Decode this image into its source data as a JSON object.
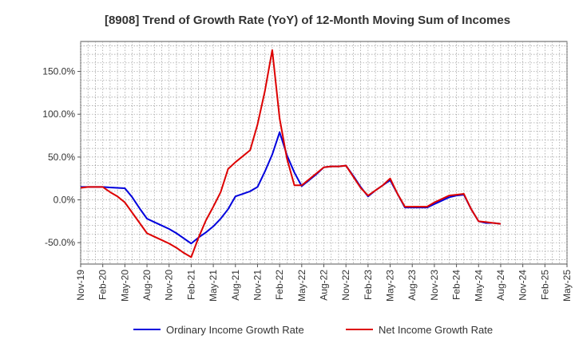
{
  "chart_data": {
    "type": "line",
    "title": "[8908]  Trend of Growth Rate (YoY) of 12-Month Moving Sum of Incomes",
    "xlabel": "",
    "ylabel": "",
    "ylim": [
      -75,
      185
    ],
    "grid": true,
    "legend_position": "bottom",
    "y_ticks": [
      150,
      100,
      50,
      0,
      -50
    ],
    "y_tick_labels": [
      "150.0%",
      "100.0%",
      "50.0%",
      "0.0%",
      "-50.0%"
    ],
    "x_tick_labels": [
      "Nov-19",
      "Feb-20",
      "May-20",
      "Aug-20",
      "Nov-20",
      "Feb-21",
      "May-21",
      "Aug-21",
      "Nov-21",
      "Feb-22",
      "May-22",
      "Aug-22",
      "Nov-22",
      "Feb-23",
      "May-23",
      "Aug-23",
      "Nov-23",
      "Feb-24",
      "May-24",
      "Aug-24",
      "Nov-24",
      "Feb-25",
      "May-25"
    ],
    "x": [
      "Nov-19",
      "Dec-19",
      "Jan-20",
      "Feb-20",
      "Mar-20",
      "Apr-20",
      "May-20",
      "Jun-20",
      "Jul-20",
      "Aug-20",
      "Sep-20",
      "Oct-20",
      "Nov-20",
      "Dec-20",
      "Jan-21",
      "Feb-21",
      "Mar-21",
      "Apr-21",
      "May-21",
      "Jun-21",
      "Jul-21",
      "Aug-21",
      "Sep-21",
      "Oct-21",
      "Nov-21",
      "Dec-21",
      "Jan-22",
      "Feb-22",
      "Mar-22",
      "Apr-22",
      "May-22",
      "Jun-22",
      "Jul-22",
      "Aug-22",
      "Sep-22",
      "Oct-22",
      "Nov-22",
      "Dec-22",
      "Jan-23",
      "Feb-23",
      "Mar-23",
      "Apr-23",
      "May-23",
      "Jun-23",
      "Jul-23",
      "Aug-23",
      "Sep-23",
      "Oct-23",
      "Nov-23",
      "Dec-23",
      "Jan-24",
      "Feb-24",
      "Mar-24",
      "Apr-24",
      "May-24",
      "Jun-24",
      "Jul-24",
      "Aug-24",
      "Sep-24",
      "Oct-24",
      "Nov-24"
    ],
    "series": [
      {
        "name": "Ordinary Income Growth Rate",
        "color": "#0000dd",
        "values": [
          15,
          15,
          15,
          15,
          14.5,
          14,
          13.5,
          3,
          -10,
          -22,
          -26,
          -30,
          -34,
          -39,
          -45,
          -51,
          -44,
          -38,
          -31,
          -22,
          -11,
          4,
          7,
          10,
          15,
          33,
          53,
          79,
          52,
          32,
          16,
          null,
          null,
          null,
          null,
          null,
          null,
          null,
          null,
          null,
          null,
          null,
          null,
          null,
          null,
          null,
          null,
          null,
          null,
          null,
          null,
          null,
          null,
          null,
          null,
          null,
          null,
          null,
          null,
          null,
          null
        ]
      },
      {
        "name": "Net Income Growth Rate",
        "color": "#dd0000",
        "values": [
          14,
          15,
          15,
          15,
          9,
          4,
          -3,
          -15,
          -27,
          -39,
          -43,
          -47,
          -51,
          -56,
          -62,
          -67,
          -44,
          -24,
          -8,
          9,
          36,
          44,
          51,
          58,
          88,
          127,
          175,
          95,
          48,
          17,
          null,
          null,
          null,
          null,
          null,
          null,
          null,
          null,
          null,
          null,
          null,
          null,
          null,
          null,
          null,
          null,
          null,
          null,
          null,
          null,
          null,
          null,
          null,
          null,
          null,
          null,
          null,
          null,
          null,
          null,
          null
        ]
      }
    ],
    "shared_tail": {
      "x_start_index": 30,
      "blue": [
        16,
        23,
        30,
        38,
        39,
        39,
        40,
        28,
        15,
        4,
        11,
        17,
        23,
        7,
        -9,
        -9,
        -9,
        -9,
        -5,
        -1,
        3,
        5,
        6,
        -11,
        -25,
        -27,
        -27,
        -28
      ],
      "red": [
        17,
        24,
        31,
        38,
        39,
        39,
        40,
        27,
        14,
        5,
        11,
        17,
        25,
        7,
        -8,
        -8,
        -8,
        -8,
        -3,
        1,
        5,
        6,
        7,
        -11,
        -25,
        -26,
        -27,
        -28
      ]
    }
  },
  "legend": {
    "series1": "Ordinary Income Growth Rate",
    "series2": "Net Income Growth Rate"
  }
}
